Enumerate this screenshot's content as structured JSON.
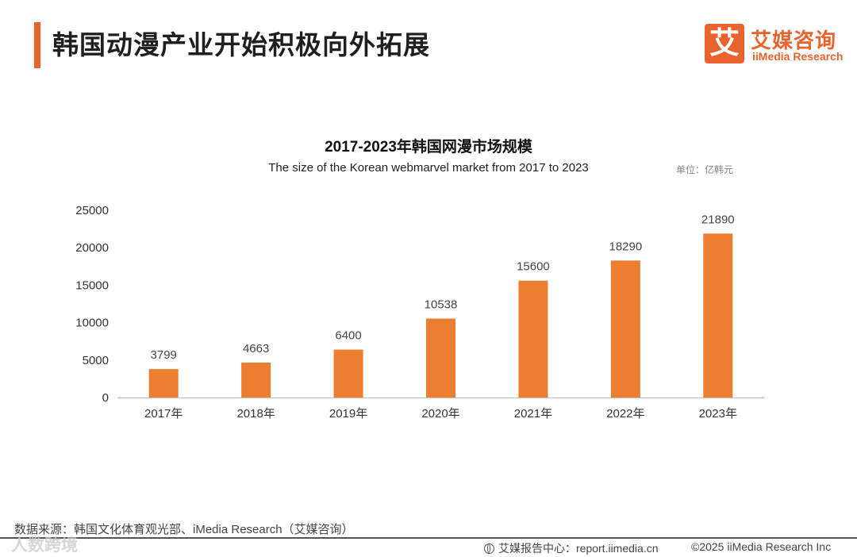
{
  "header": {
    "title": "韩国动漫产业开始积极向外拓展",
    "logo_mark": "艾",
    "logo_cn": "艾媒咨询",
    "logo_en": "iiMedia Research"
  },
  "colors": {
    "accent": "#e8642c",
    "bar": "#ed7d31",
    "axis": "#bfbfbf"
  },
  "chart_data": {
    "type": "bar",
    "title": "2017-2023年韩国网漫市场规模",
    "subtitle": "The size of the Korean webmarvel market from 2017 to 2023",
    "unit": "单位：亿韩元",
    "categories": [
      "2017年",
      "2018年",
      "2019年",
      "2020年",
      "2021年",
      "2022年",
      "2023年"
    ],
    "values": [
      3799,
      4663,
      6400,
      10538,
      15600,
      18290,
      21890
    ],
    "data_labels": [
      "3799",
      "4663",
      "6400",
      "10538",
      "15600",
      "18290",
      "21890"
    ],
    "y_ticks": [
      0,
      5000,
      10000,
      15000,
      20000,
      25000
    ],
    "y_tick_labels": [
      "0",
      "5000",
      "10000",
      "15000",
      "20000",
      "25000"
    ],
    "ylim": [
      0,
      25000
    ],
    "xlabel": "",
    "ylabel": "",
    "grid": false,
    "legend": "none"
  },
  "footer": {
    "source": "数据来源：韩国文化体育观光部、iMedia Research（艾媒咨询）",
    "watermark": "人数跨境",
    "site": "艾媒报告中心：report.iimedia.cn",
    "copyright": "©2025  iiMedia Research  Inc"
  }
}
